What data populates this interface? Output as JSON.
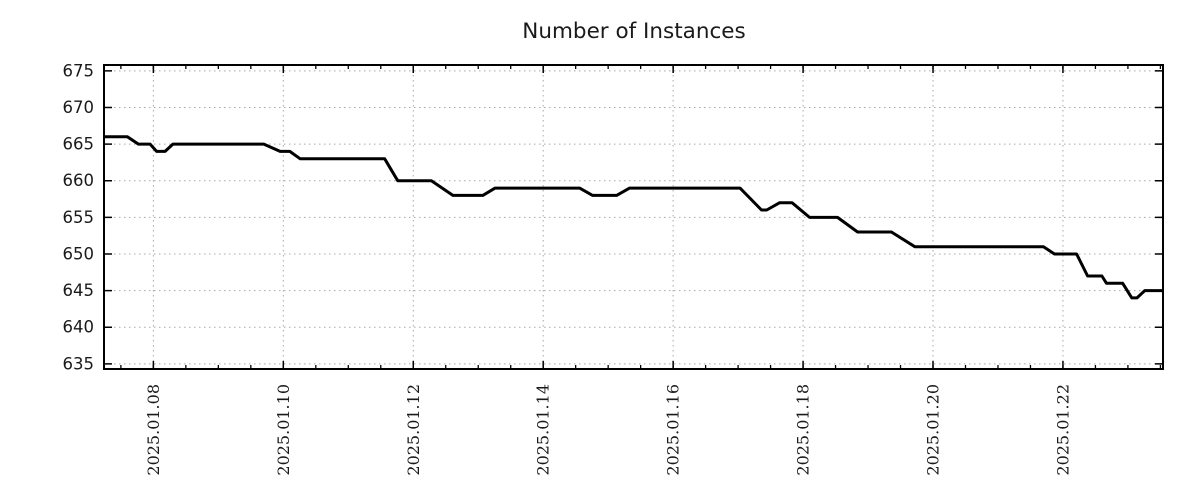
{
  "title": "Number of Instances",
  "colors": {
    "line": "#000000",
    "grid": "#a8a8a8",
    "border": "#000000",
    "text": "#1a1a1a"
  },
  "chart_data": {
    "type": "line",
    "title": "Number of Instances",
    "xlabel": "",
    "ylabel": "",
    "legend": null,
    "grid": "dotted, at major ticks",
    "x_axis": {
      "kind": "date-as-day-of-january-2025",
      "range": [
        7.24,
        23.54
      ],
      "major_ticks": [
        8,
        10,
        12,
        14,
        16,
        18,
        20,
        22
      ],
      "major_tick_labels": [
        "2025.01.08",
        "2025.01.10",
        "2025.01.12",
        "2025.01.14",
        "2025.01.16",
        "2025.01.18",
        "2025.01.20",
        "2025.01.22"
      ],
      "minor_tick_step": 0.5,
      "label_rotation_deg": -90
    },
    "y_axis": {
      "range": [
        634.3,
        675.8
      ],
      "major_ticks": [
        635,
        640,
        645,
        650,
        655,
        660,
        665,
        670,
        675
      ],
      "major_tick_labels": [
        "635",
        "640",
        "645",
        "650",
        "655",
        "660",
        "665",
        "670",
        "675"
      ]
    },
    "series": [
      {
        "name": "instances",
        "color": "#000000",
        "points": [
          [
            7.24,
            666
          ],
          [
            7.6,
            666
          ],
          [
            7.77,
            665
          ],
          [
            7.95,
            665
          ],
          [
            8.05,
            664
          ],
          [
            8.18,
            664
          ],
          [
            8.3,
            665
          ],
          [
            9.7,
            665
          ],
          [
            9.95,
            664
          ],
          [
            10.1,
            664
          ],
          [
            10.26,
            663
          ],
          [
            11.56,
            663
          ],
          [
            11.76,
            660
          ],
          [
            12.28,
            660
          ],
          [
            12.61,
            658
          ],
          [
            13.07,
            658
          ],
          [
            13.26,
            659
          ],
          [
            14.56,
            659
          ],
          [
            14.76,
            658
          ],
          [
            15.13,
            658
          ],
          [
            15.33,
            659
          ],
          [
            17.03,
            659
          ],
          [
            17.36,
            656
          ],
          [
            17.44,
            656
          ],
          [
            17.64,
            657
          ],
          [
            17.83,
            657
          ],
          [
            18.1,
            655
          ],
          [
            18.53,
            655
          ],
          [
            18.84,
            653
          ],
          [
            19.36,
            653
          ],
          [
            19.72,
            651
          ],
          [
            21.7,
            651
          ],
          [
            21.87,
            650
          ],
          [
            22.21,
            650
          ],
          [
            22.38,
            647
          ],
          [
            22.6,
            647
          ],
          [
            22.67,
            646
          ],
          [
            22.92,
            646
          ],
          [
            23.06,
            644
          ],
          [
            23.14,
            644
          ],
          [
            23.26,
            645
          ],
          [
            23.54,
            645
          ]
        ]
      }
    ]
  }
}
